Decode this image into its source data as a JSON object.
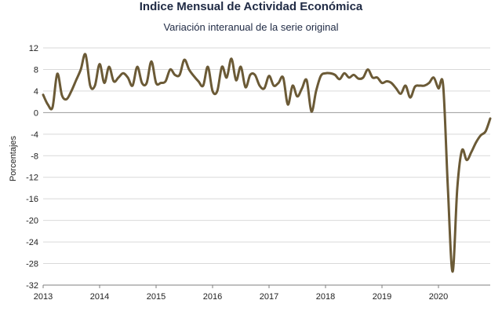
{
  "chart_data": {
    "type": "line",
    "title": "Indice Mensual de  Actividad Económica",
    "subtitle": "Variación interanual de la serie original",
    "xlabel": "",
    "ylabel": "Porcentajes",
    "ylim": [
      -32,
      12
    ],
    "yticks": [
      12,
      8,
      4,
      0,
      -4,
      -8,
      -12,
      -16,
      -20,
      -24,
      -28,
      -32
    ],
    "xticks": [
      "2013",
      "2014",
      "2015",
      "2016",
      "2017",
      "2018",
      "2019",
      "2020"
    ],
    "grid": true,
    "legend": "none",
    "colors": {
      "line": "#6b5a36",
      "grid": "#d9d9d9",
      "zero": "#999999"
    },
    "series": [
      {
        "x": [
          "2013-01",
          "2013-02",
          "2013-03",
          "2013-04",
          "2013-05",
          "2013-06",
          "2013-07",
          "2013-08",
          "2013-09",
          "2013-10",
          "2013-11",
          "2013-12",
          "2014-01",
          "2014-02",
          "2014-03",
          "2014-04",
          "2014-05",
          "2014-06",
          "2014-07",
          "2014-08",
          "2014-09",
          "2014-10",
          "2014-11",
          "2014-12",
          "2015-01",
          "2015-02",
          "2015-03",
          "2015-04",
          "2015-05",
          "2015-06",
          "2015-07",
          "2015-08",
          "2015-09",
          "2015-10",
          "2015-11",
          "2015-12",
          "2016-01",
          "2016-02",
          "2016-03",
          "2016-04",
          "2016-05",
          "2016-06",
          "2016-07",
          "2016-08",
          "2016-09",
          "2016-10",
          "2016-11",
          "2016-12",
          "2017-01",
          "2017-02",
          "2017-03",
          "2017-04",
          "2017-05",
          "2017-06",
          "2017-07",
          "2017-08",
          "2017-09",
          "2017-10",
          "2017-11",
          "2017-12",
          "2018-01",
          "2018-02",
          "2018-03",
          "2018-04",
          "2018-05",
          "2018-06",
          "2018-07",
          "2018-08",
          "2018-09",
          "2018-10",
          "2018-11",
          "2018-12",
          "2019-01",
          "2019-02",
          "2019-03",
          "2019-04",
          "2019-05",
          "2019-06",
          "2019-07",
          "2019-08",
          "2019-09",
          "2019-10",
          "2019-11",
          "2019-12",
          "2020-01",
          "2020-02",
          "2020-03",
          "2020-04",
          "2020-05",
          "2020-06",
          "2020-07",
          "2020-08",
          "2020-09",
          "2020-10",
          "2020-11",
          "2020-12"
        ],
        "values": [
          3.3,
          1.5,
          1.0,
          7.2,
          3.2,
          2.5,
          4.0,
          6.0,
          8.0,
          10.8,
          5.0,
          5.0,
          9.0,
          5.5,
          8.5,
          5.8,
          6.5,
          7.3,
          6.5,
          5.0,
          8.5,
          5.5,
          5.5,
          9.5,
          5.5,
          5.5,
          5.8,
          8.0,
          7.0,
          7.0,
          9.8,
          8.0,
          6.8,
          5.8,
          5.0,
          8.5,
          4.0,
          4.0,
          8.5,
          6.5,
          10.0,
          6.0,
          8.5,
          4.7,
          7.0,
          7.0,
          5.0,
          4.5,
          6.8,
          5.0,
          5.5,
          6.5,
          1.5,
          5.0,
          3.0,
          4.5,
          6.0,
          0.2,
          4.0,
          6.8,
          7.3,
          7.3,
          7.0,
          6.2,
          7.3,
          6.5,
          7.0,
          6.3,
          6.5,
          8.0,
          6.5,
          6.5,
          5.5,
          5.8,
          5.5,
          4.5,
          3.5,
          5.0,
          2.8,
          4.8,
          5.0,
          5.0,
          5.5,
          6.5,
          4.5,
          5.0,
          -14.0,
          -29.5,
          -14.0,
          -7.0,
          -8.8,
          -7.3,
          -5.5,
          -4.2,
          -3.5,
          -1.1
        ]
      }
    ]
  }
}
